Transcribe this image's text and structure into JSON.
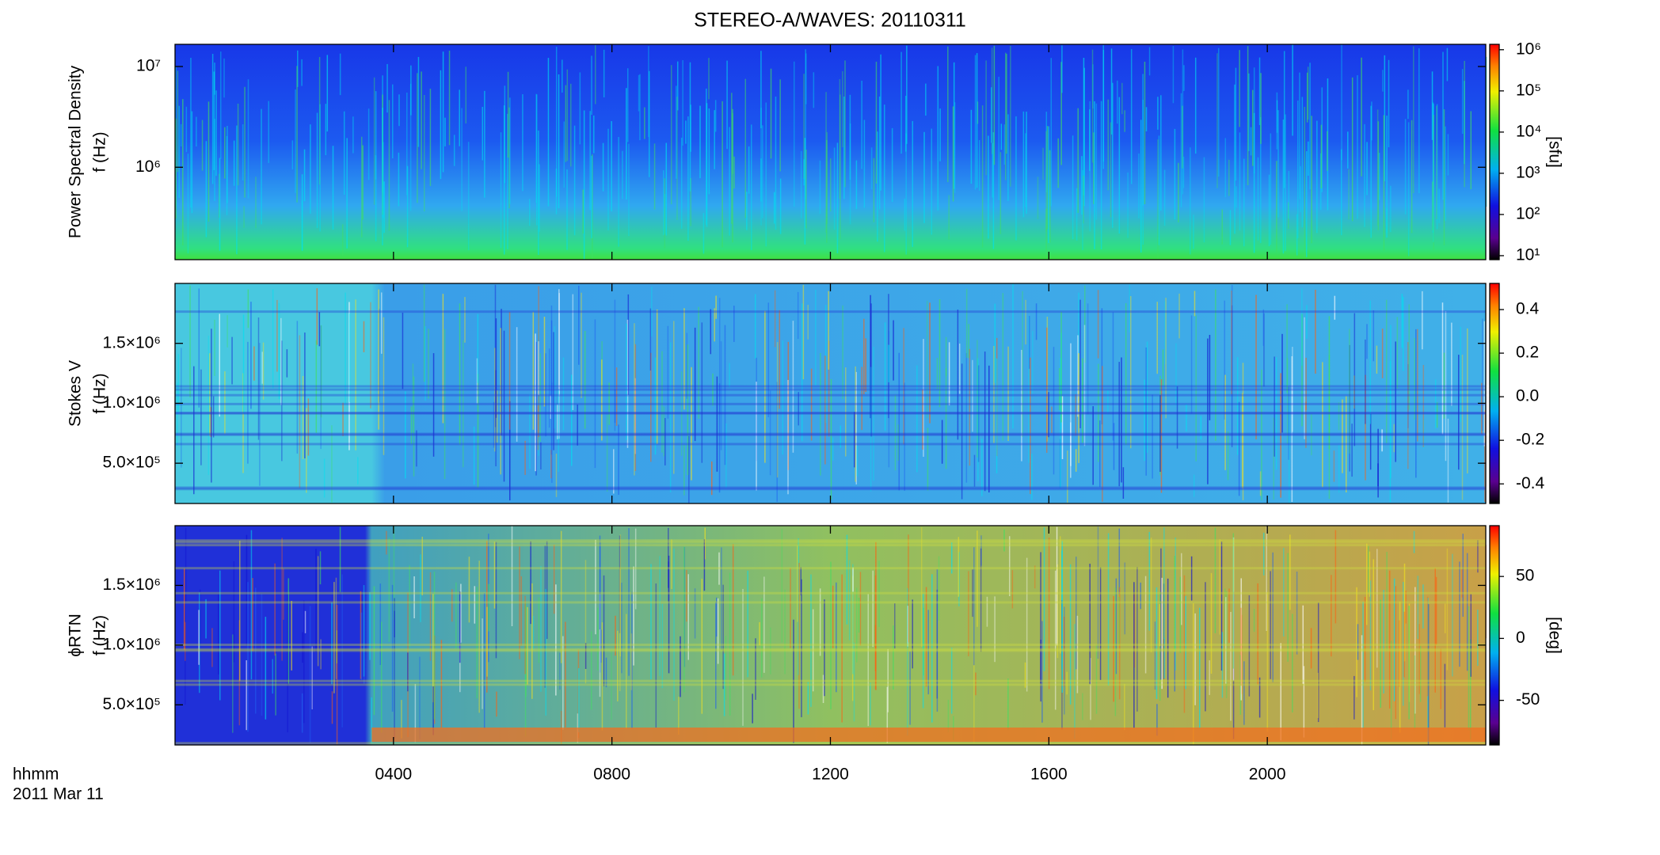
{
  "chart_data": [
    {
      "type": "heatmap",
      "title": "STEREO-A/WAVES: 20110311",
      "ylabel": [
        "Power Spectral Density",
        "f (Hz)"
      ],
      "ylog": true,
      "ylim": [
        121000,
        16600000
      ],
      "yticks": [
        {
          "value": 1000000,
          "label": "10⁶"
        },
        {
          "value": 10000000,
          "label": "10⁷"
        }
      ],
      "clog": true,
      "clim": [
        8,
        1350000
      ],
      "cticks": [
        {
          "value": 10,
          "label": "10¹"
        },
        {
          "value": 100,
          "label": "10²"
        },
        {
          "value": 1000,
          "label": "10³"
        },
        {
          "value": 10000,
          "label": "10⁴"
        },
        {
          "value": 100000,
          "label": "10⁵"
        },
        {
          "value": 1000000,
          "label": "10⁶"
        }
      ],
      "clabel": "[sfu]"
    },
    {
      "type": "heatmap",
      "ylabel": [
        "Stokes V",
        "f (Hz)"
      ],
      "ylog": false,
      "ylim": [
        164000,
        2000000
      ],
      "yticks": [
        {
          "value": 500000,
          "label": "5.0×10⁵"
        },
        {
          "value": 1000000,
          "label": "1.0×10⁶"
        },
        {
          "value": 1500000,
          "label": "1.5×10⁶"
        }
      ],
      "clog": false,
      "clim": [
        -0.49,
        0.52
      ],
      "cticks": [
        -0.4,
        -0.2,
        {
          "value": 0,
          "label": "0.0"
        },
        0.2,
        0.4
      ]
    },
    {
      "type": "heatmap",
      "ylabel": [
        "ϕRTN",
        "f (Hz)"
      ],
      "ylog": false,
      "ylim": [
        164000,
        2000000
      ],
      "yticks": [
        {
          "value": 500000,
          "label": "5.0×10⁵"
        },
        {
          "value": 1000000,
          "label": "1.0×10⁶"
        },
        {
          "value": 1500000,
          "label": "1.5×10⁶"
        }
      ],
      "clog": false,
      "clim": [
        -86,
        91
      ],
      "cticks": [
        -50,
        0,
        50
      ],
      "clabel": "[deg]",
      "xlim": [
        0,
        24
      ],
      "xticks": [
        {
          "value": 4,
          "label": "0400"
        },
        {
          "value": 8,
          "label": "0800"
        },
        {
          "value": 12,
          "label": "1200"
        },
        {
          "value": 16,
          "label": "1600"
        },
        {
          "value": 20,
          "label": "2000"
        }
      ],
      "xlabel": [
        "hhmm",
        "2011 Mar 11"
      ]
    }
  ]
}
